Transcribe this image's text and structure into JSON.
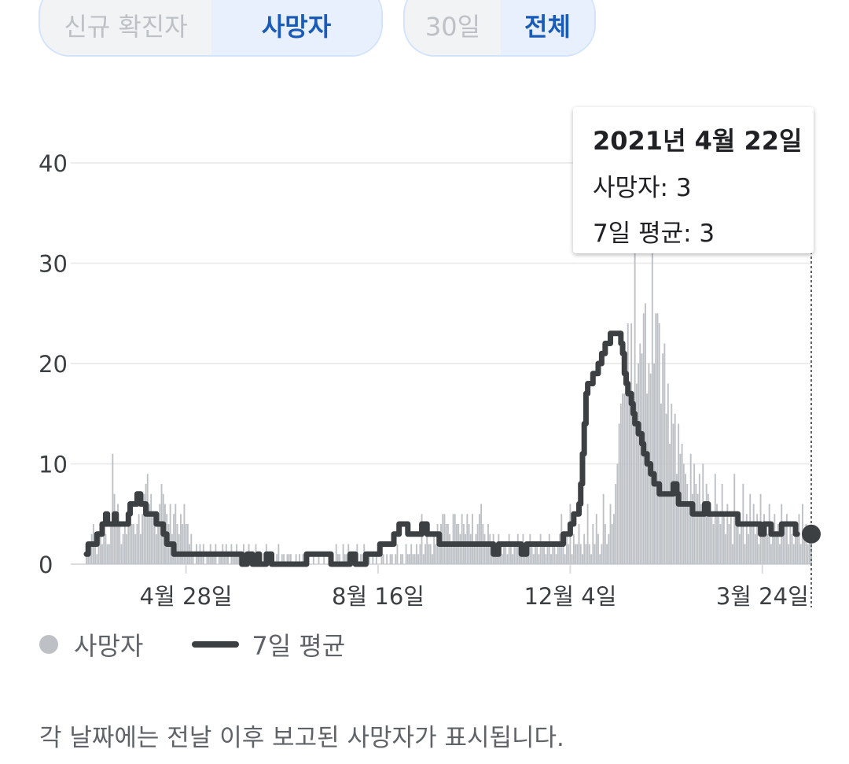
{
  "metric_toggle": {
    "options": [
      "신규 확진자",
      "사망자"
    ],
    "selected": "사망자"
  },
  "range_toggle": {
    "options": [
      "30일",
      "전체"
    ],
    "selected": "전체"
  },
  "tooltip": {
    "date": "2021년 4월 22일",
    "deaths": "사망자: 3",
    "avg": "7일 평균: 3"
  },
  "legend": {
    "deaths": "사망자",
    "avg": "7일 평균"
  },
  "footnote": "각 날짜에는 전날 이후 보고된 사망자가 표시됩니다.",
  "colors": {
    "bars": "#bdc1c6",
    "average_line": "#3c4043",
    "active_accent": "#1a5bb8"
  },
  "chart_data": {
    "type": "bar",
    "ylim": [
      0,
      40
    ],
    "yticks": [
      "0",
      "10",
      "20",
      "30",
      "40"
    ],
    "xtick_labels": [
      {
        "label": "4월 28일",
        "day": 57
      },
      {
        "label": "8월 16일",
        "day": 167
      },
      {
        "label": "12월 4일",
        "day": 277
      },
      {
        "label": "3월 24일",
        "day": 387
      }
    ],
    "grid": true,
    "series": [
      {
        "name": "사망자",
        "type": "bar",
        "values": [
          1,
          2,
          1,
          3,
          4,
          2,
          1,
          2,
          3,
          2,
          5,
          3,
          2,
          2,
          4,
          11,
          7,
          5,
          6,
          4,
          2,
          3,
          4,
          3,
          5,
          6,
          4,
          4,
          3,
          4,
          5,
          3,
          5,
          7,
          8,
          9,
          6,
          7,
          5,
          4,
          3,
          5,
          6,
          8,
          7,
          6,
          5,
          4,
          6,
          3,
          5,
          6,
          4,
          3,
          5,
          4,
          6,
          4,
          4,
          2,
          3,
          1,
          0,
          2,
          1,
          2,
          1,
          2,
          0,
          1,
          1,
          2,
          1,
          1,
          2,
          0,
          1,
          1,
          2,
          1,
          2,
          1,
          0,
          2,
          1,
          1,
          2,
          1,
          1,
          0,
          2,
          1,
          1,
          2,
          1,
          0,
          1,
          2,
          1,
          0,
          1,
          0,
          0,
          2,
          1,
          0,
          1,
          1,
          0,
          1,
          2,
          0,
          1,
          1,
          0,
          1,
          1,
          1,
          0,
          0,
          1,
          0,
          1,
          0,
          1,
          0,
          0,
          1,
          0,
          0,
          1,
          0,
          0,
          1,
          0,
          0,
          1,
          0,
          0,
          1,
          0,
          1,
          0,
          2,
          1,
          1,
          0,
          2,
          1,
          1,
          2,
          1,
          0,
          1,
          1,
          2,
          0,
          1,
          1,
          2,
          0,
          0,
          1,
          0,
          1,
          0,
          1,
          0,
          0,
          1,
          1,
          0,
          1,
          0,
          1,
          1,
          0,
          1,
          2,
          0,
          1,
          1,
          0,
          2,
          1,
          1,
          2,
          1,
          1,
          2,
          1,
          2,
          5,
          1,
          2,
          3,
          2,
          2,
          1,
          3,
          2,
          4,
          3,
          4,
          5,
          5,
          4,
          4,
          3,
          2,
          5,
          5,
          4,
          4,
          3,
          5,
          4,
          3,
          5,
          4,
          3,
          5,
          2,
          3,
          4,
          5,
          6,
          4,
          3,
          2,
          4,
          3,
          2,
          3,
          2,
          1,
          3,
          2,
          1,
          2,
          2,
          1,
          3,
          2,
          1,
          2,
          2,
          3,
          2,
          1,
          3,
          1,
          2,
          2,
          3,
          2,
          1,
          2,
          2,
          1,
          3,
          2,
          2,
          1,
          2,
          3,
          1,
          2,
          2,
          1,
          2,
          3,
          5,
          2,
          1,
          3,
          2,
          6,
          1,
          3,
          2,
          2,
          4,
          2,
          1,
          3,
          2,
          6,
          2,
          1,
          4,
          2,
          5,
          3,
          1,
          2,
          7,
          4,
          2,
          3,
          6,
          4,
          5,
          8,
          10,
          14,
          16,
          17,
          17,
          21,
          24,
          18,
          24,
          16,
          32,
          18,
          20,
          22,
          21,
          25,
          26,
          17,
          20,
          19,
          32,
          20,
          25,
          25,
          24,
          16,
          21,
          22,
          15,
          18,
          12,
          16,
          14,
          15,
          9,
          14,
          11,
          12,
          10,
          9,
          8,
          6,
          11,
          7,
          10,
          8,
          7,
          9,
          6,
          10,
          5,
          8,
          7,
          6,
          5,
          4,
          9,
          6,
          5,
          4,
          8,
          5,
          3,
          6,
          4,
          5,
          2,
          9,
          4,
          5,
          3,
          4,
          8,
          2,
          5,
          3,
          7,
          4,
          6,
          3,
          5,
          2,
          7,
          3,
          5,
          4,
          3,
          6,
          2,
          4,
          5,
          3,
          4,
          2,
          6,
          3,
          4,
          5,
          2,
          4,
          3,
          2,
          4,
          3,
          5,
          2,
          6,
          3,
          4,
          2,
          3,
          3
        ]
      },
      {
        "name": "7일 평균",
        "type": "line",
        "values": [
          1,
          2,
          2,
          2,
          2,
          2,
          3,
          3,
          3,
          4,
          4,
          5,
          4,
          4,
          4,
          4,
          5,
          4,
          4,
          4,
          4,
          4,
          4,
          4,
          5,
          6,
          6,
          6,
          6,
          7,
          7,
          6,
          6,
          6,
          5,
          5,
          5,
          5,
          5,
          5,
          4,
          4,
          4,
          4,
          3,
          3,
          2,
          2,
          2,
          2,
          1,
          1,
          1,
          1,
          1,
          1,
          1,
          1,
          1,
          1,
          1,
          1,
          1,
          1,
          1,
          1,
          1,
          1,
          1,
          1,
          1,
          1,
          1,
          1,
          1,
          1,
          1,
          1,
          1,
          1,
          1,
          1,
          1,
          1,
          1,
          1,
          1,
          1,
          1,
          0,
          0,
          0,
          1,
          1,
          1,
          0,
          0,
          0,
          1,
          0,
          0,
          0,
          0,
          1,
          1,
          1,
          0,
          0,
          0,
          0,
          0,
          0,
          0,
          0,
          0,
          0,
          0,
          0,
          0,
          0,
          0,
          0,
          0,
          0,
          0,
          0,
          1,
          1,
          1,
          1,
          1,
          1,
          1,
          1,
          1,
          1,
          1,
          1,
          1,
          1,
          0,
          0,
          0,
          0,
          0,
          0,
          0,
          0,
          0,
          0,
          0,
          1,
          1,
          1,
          0,
          0,
          0,
          0,
          0,
          0,
          1,
          1,
          1,
          1,
          1,
          1,
          1,
          1,
          2,
          2,
          2,
          2,
          2,
          2,
          2,
          2,
          3,
          3,
          3,
          4,
          4,
          4,
          4,
          4,
          3,
          3,
          3,
          3,
          3,
          3,
          3,
          3,
          4,
          4,
          4,
          3,
          3,
          3,
          3,
          3,
          3,
          3,
          2,
          2,
          2,
          2,
          2,
          2,
          2,
          2,
          2,
          2,
          2,
          2,
          2,
          2,
          2,
          2,
          2,
          2,
          2,
          2,
          2,
          2,
          2,
          2,
          2,
          2,
          2,
          2,
          2,
          2,
          2,
          1,
          1,
          1,
          2,
          2,
          2,
          2,
          2,
          2,
          2,
          2,
          2,
          2,
          2,
          2,
          2,
          1,
          1,
          1,
          2,
          2,
          2,
          2,
          2,
          2,
          2,
          2,
          2,
          2,
          2,
          2,
          2,
          2,
          2,
          2,
          2,
          2,
          2,
          2,
          2,
          3,
          3,
          3,
          3,
          4,
          4,
          5,
          5,
          5,
          6,
          8,
          11,
          14,
          17,
          18,
          18,
          18,
          19,
          19,
          19,
          20,
          20,
          21,
          21,
          22,
          22,
          22,
          23,
          23,
          23,
          23,
          23,
          23,
          22,
          21,
          19,
          18,
          17,
          17,
          16,
          15,
          14,
          14,
          13,
          13,
          12,
          11,
          11,
          10,
          10,
          9,
          9,
          8,
          8,
          8,
          7,
          7,
          7,
          7,
          7,
          7,
          7,
          7,
          8,
          8,
          7,
          6,
          6,
          6,
          6,
          6,
          6,
          6,
          6,
          5,
          5,
          5,
          5,
          5,
          5,
          5,
          6,
          6,
          5,
          5,
          5,
          5,
          5,
          5,
          5,
          5,
          5,
          5,
          5,
          5,
          5,
          5,
          5,
          5,
          5,
          4,
          4,
          4,
          4,
          4,
          4,
          4,
          4,
          4,
          4,
          4,
          4,
          4,
          3,
          3,
          4,
          4,
          4,
          4,
          3,
          3,
          3,
          3,
          3,
          3,
          4,
          4,
          4,
          4,
          4,
          4,
          4,
          4,
          3,
          3
        ]
      }
    ],
    "highlight": {
      "date": "2021년 4월 22일",
      "deaths": 3,
      "average": 3
    }
  }
}
